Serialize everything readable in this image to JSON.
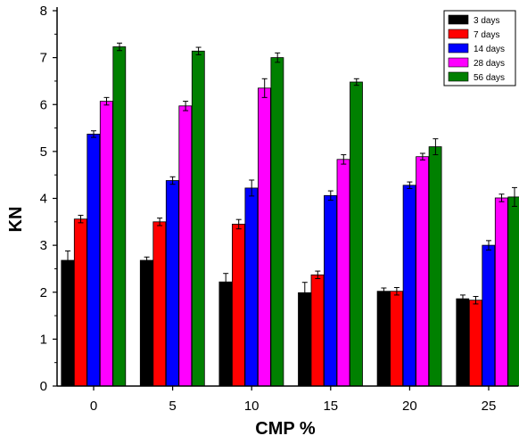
{
  "chart_data": {
    "type": "bar",
    "title": "",
    "xlabel": "CMP %",
    "ylabel": "KN",
    "categories": [
      "0",
      "5",
      "10",
      "15",
      "20",
      "25"
    ],
    "ylim": [
      0,
      8
    ],
    "yticks": [
      0,
      1,
      2,
      3,
      4,
      5,
      6,
      7,
      8
    ],
    "legend_position": "top-right",
    "series": [
      {
        "name": "3 days",
        "color": "#000000",
        "values": [
          2.68,
          2.68,
          2.22,
          1.99,
          2.02,
          1.86
        ],
        "errors": [
          0.2,
          0.07,
          0.18,
          0.22,
          0.07,
          0.08
        ]
      },
      {
        "name": "7 days",
        "color": "#ff0000",
        "values": [
          3.56,
          3.5,
          3.45,
          2.37,
          2.02,
          1.83
        ],
        "errors": [
          0.08,
          0.08,
          0.1,
          0.08,
          0.08,
          0.08
        ]
      },
      {
        "name": "14 days",
        "color": "#0000ff",
        "values": [
          5.37,
          4.38,
          4.22,
          4.06,
          4.28,
          3.0
        ],
        "errors": [
          0.07,
          0.08,
          0.17,
          0.1,
          0.07,
          0.1
        ]
      },
      {
        "name": "28 days",
        "color": "#ff00ff",
        "values": [
          6.07,
          5.97,
          6.35,
          4.83,
          4.89,
          4.01
        ],
        "errors": [
          0.08,
          0.1,
          0.2,
          0.1,
          0.07,
          0.08
        ]
      },
      {
        "name": "56 days",
        "color": "#008000",
        "values": [
          7.23,
          7.14,
          7.0,
          6.48,
          5.1,
          4.03
        ],
        "errors": [
          0.08,
          0.08,
          0.1,
          0.07,
          0.17,
          0.2
        ]
      }
    ]
  }
}
